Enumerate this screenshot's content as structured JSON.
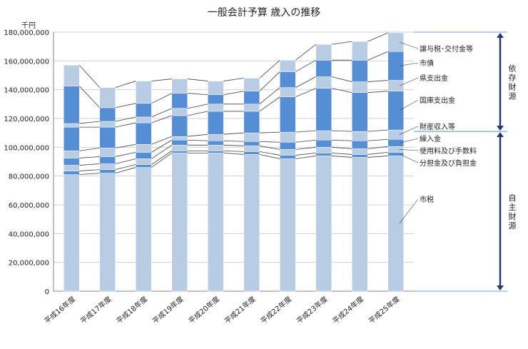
{
  "chart_data": {
    "type": "bar",
    "stacked": true,
    "title": "一般会計予算 歳入の推移",
    "unit": "千円",
    "ylim": [
      0,
      180000000
    ],
    "yticks": [
      "0",
      "20,000,000",
      "40,000,000",
      "60,000,000",
      "80,000,000",
      "100,000,000",
      "120,000,000",
      "140,000,000",
      "160,000,000",
      "180,000,000"
    ],
    "ytick_values": [
      0,
      20000000,
      40000000,
      60000000,
      80000000,
      100000000,
      120000000,
      140000000,
      160000000,
      180000000
    ],
    "grid": true,
    "categories": [
      "平成16年度",
      "平成17年度",
      "平成18年度",
      "平成19年度",
      "平成20年度",
      "平成21年度",
      "平成22年度",
      "平成23年度",
      "平成24年度",
      "平成25年度"
    ],
    "series": [
      {
        "name": "市税",
        "color": "#b8cce4",
        "values": [
          81000000,
          82000000,
          86000000,
          96000000,
          96000000,
          95000000,
          92000000,
          94000000,
          93000000,
          94000000
        ]
      },
      {
        "name": "分担金及び負担金",
        "color": "#558ed5",
        "values": [
          2500000,
          2500000,
          2000000,
          1500000,
          1500000,
          2000000,
          2500000,
          2000000,
          2000000,
          2500000
        ]
      },
      {
        "name": "使用料及び手数料",
        "color": "#b8cce4",
        "values": [
          4000000,
          4000000,
          4000000,
          4000000,
          4000000,
          4000000,
          4000000,
          4000000,
          4000000,
          4000000
        ]
      },
      {
        "name": "繰入金",
        "color": "#558ed5",
        "values": [
          5000000,
          5000000,
          4500000,
          3500000,
          3000000,
          3000000,
          5000000,
          5000000,
          5500000,
          5000000
        ]
      },
      {
        "name": "財産収入等",
        "color": "#b8cce4",
        "values": [
          5000000,
          6000000,
          5500000,
          2500000,
          4500000,
          6000000,
          7000000,
          6500000,
          6500000,
          6500000
        ]
      },
      {
        "name": "国庫支出金",
        "color": "#558ed5",
        "values": [
          16500000,
          14500000,
          15000000,
          14500000,
          16000000,
          15000000,
          24500000,
          29500000,
          27000000,
          27000000
        ]
      },
      {
        "name": "県支出金",
        "color": "#b8cce4",
        "values": [
          2500000,
          4000000,
          4000000,
          5000000,
          5000000,
          5000000,
          6500000,
          8000000,
          7500000,
          7500000
        ]
      },
      {
        "name": "市債",
        "color": "#558ed5",
        "values": [
          26000000,
          9500000,
          9500000,
          10500000,
          6500000,
          9000000,
          11000000,
          11500000,
          15000000,
          20000000
        ]
      },
      {
        "name": "譲与税･交付金等",
        "color": "#b8cce4",
        "values": [
          14500000,
          14000000,
          15500000,
          10000000,
          9500000,
          9000000,
          8000000,
          11000000,
          13000000,
          13000000
        ]
      }
    ],
    "label_order": [
      "譲与税･交付金等",
      "市債",
      "県支出金",
      "国庫支出金",
      "財産収入等",
      "繰入金",
      "使用料及び手数料",
      "分担金及び負担金",
      "市税"
    ],
    "groups": [
      {
        "name": "依存財源",
        "from": 111000000,
        "to": 180000000
      },
      {
        "name": "自主財源",
        "from": 0,
        "to": 111000000
      }
    ]
  }
}
